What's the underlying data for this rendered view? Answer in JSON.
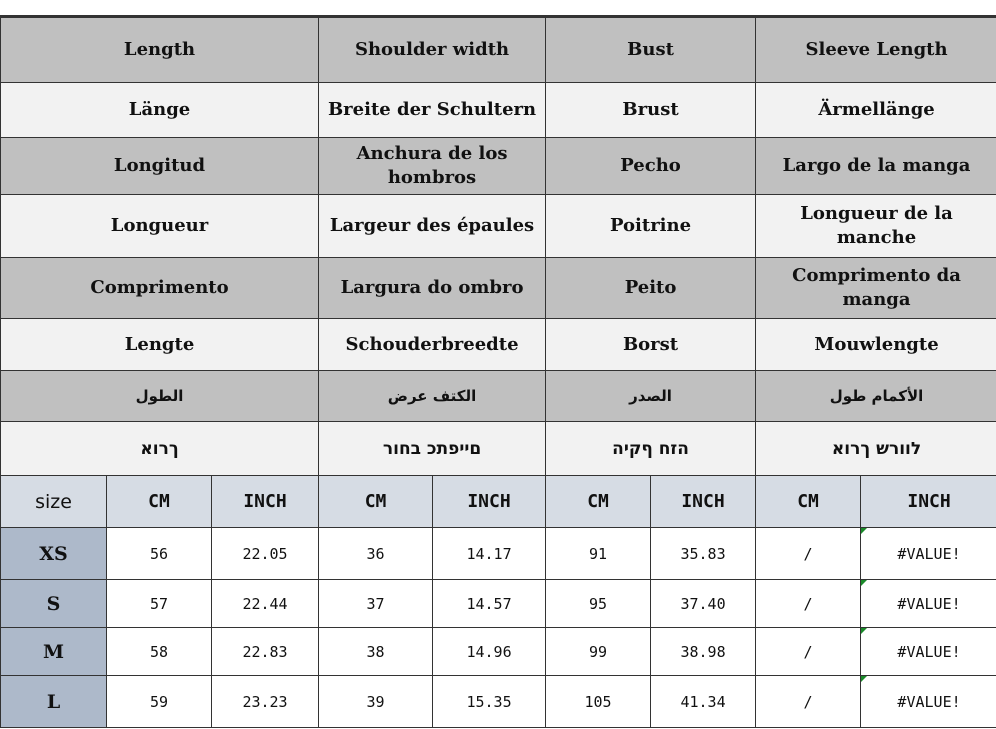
{
  "label_rows": [
    {
      "lang": "en",
      "style": "gray",
      "cells": [
        "Length",
        "Shoulder width",
        "Bust",
        "Sleeve Length"
      ]
    },
    {
      "lang": "de",
      "style": "light",
      "cells": [
        "Länge",
        "Breite der Schultern",
        "Brust",
        "Ärmellänge"
      ]
    },
    {
      "lang": "es",
      "style": "gray",
      "cells": [
        "Longitud",
        "Anchura de los hombros",
        "Pecho",
        "Largo de la manga"
      ]
    },
    {
      "lang": "fr",
      "style": "light",
      "cells": [
        "Longueur",
        "Largeur des épaules",
        "Poitrine",
        "Longueur de la manche"
      ]
    },
    {
      "lang": "pt",
      "style": "gray",
      "cells": [
        "Comprimento",
        "Largura do ombro",
        "Peito",
        "Comprimento da manga"
      ]
    },
    {
      "lang": "nl",
      "style": "light",
      "cells": [
        "Lengte",
        "Schouderbreedte",
        "Borst",
        "Mouwlengte"
      ]
    },
    {
      "lang": "ar",
      "style": "gray",
      "cells": [
        "الطول",
        "الكتف عرض",
        "الصدر",
        "الأكمام طول"
      ]
    },
    {
      "lang": "he",
      "style": "light",
      "cells": [
        "ךרוא",
        "םייפתכ בחור",
        "הזח ףקיה",
        "לוורש ךרוא"
      ]
    }
  ],
  "header": {
    "size": "size",
    "units": [
      "CM",
      "INCH",
      "CM",
      "INCH",
      "CM",
      "INCH",
      "CM",
      "INCH"
    ]
  },
  "rows": [
    {
      "size": "XS",
      "values": [
        "56",
        "22.05",
        "36",
        "14.17",
        "91",
        "35.83",
        "/",
        "#VALUE!"
      ]
    },
    {
      "size": "S",
      "values": [
        "57",
        "22.44",
        "37",
        "14.57",
        "95",
        "37.40",
        "/",
        "#VALUE!"
      ]
    },
    {
      "size": "M",
      "values": [
        "58",
        "22.83",
        "38",
        "14.96",
        "99",
        "38.98",
        "/",
        "#VALUE!"
      ]
    },
    {
      "size": "L",
      "values": [
        "59",
        "23.23",
        "39",
        "15.35",
        "105",
        "41.34",
        "/",
        "#VALUE!"
      ]
    }
  ],
  "colors": {
    "gray": "#c0c0c0",
    "light": "#f2f2f2",
    "header": "#d6dce4",
    "size_cell": "#adb9ca",
    "error_marker": "#1a8a2a"
  }
}
